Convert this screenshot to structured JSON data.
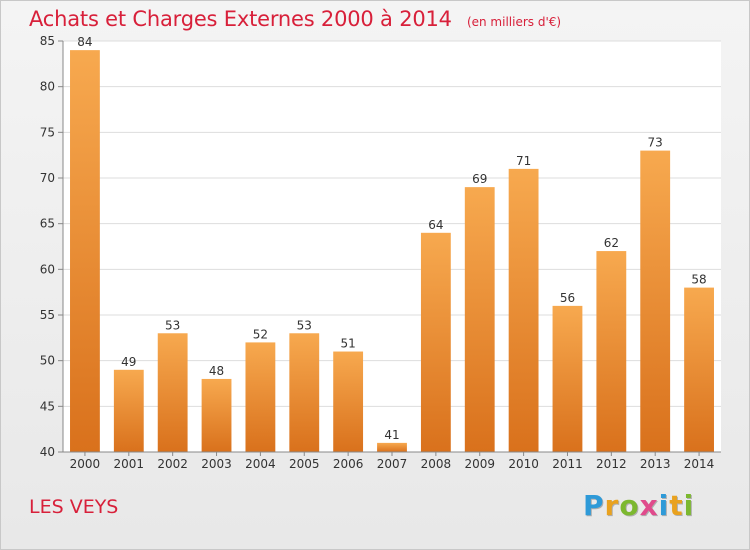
{
  "header": {
    "title": "Achats et Charges Externes 2000 à 2014",
    "unit": "(en milliers d'€)"
  },
  "footer": {
    "commune": "LES VEYS",
    "logo": {
      "letters": [
        "P",
        "r",
        "o",
        "x",
        "i",
        "t",
        "i"
      ],
      "colors": [
        "#2e9ad8",
        "#e9a21f",
        "#7cb82f",
        "#e04a8c",
        "#2e9ad8",
        "#e9a21f",
        "#7cb82f"
      ]
    }
  },
  "colors": {
    "bar_light": "#f7a94f",
    "bar_dark": "#d9711c",
    "plot_bg": "#ffffff",
    "grid": "#dddddd",
    "title": "#d8203a"
  },
  "chart_data": {
    "type": "bar",
    "categories": [
      "2000",
      "2001",
      "2002",
      "2003",
      "2004",
      "2005",
      "2006",
      "2007",
      "2008",
      "2009",
      "2010",
      "2011",
      "2012",
      "2013",
      "2014"
    ],
    "values": [
      84,
      49,
      53,
      48,
      52,
      53,
      51,
      41,
      64,
      69,
      71,
      56,
      62,
      73,
      58
    ],
    "ylim": [
      40,
      85
    ],
    "yticks": [
      40,
      45,
      50,
      55,
      60,
      65,
      70,
      75,
      80,
      85
    ],
    "grid": true,
    "data_labels": true
  }
}
